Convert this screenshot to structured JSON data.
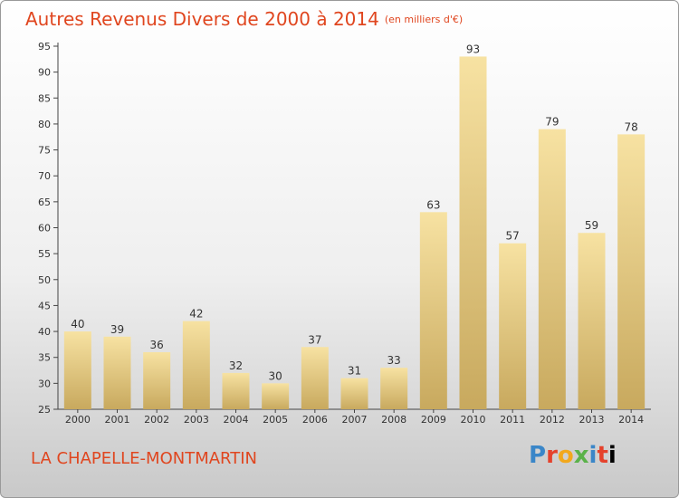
{
  "title": "Autres Revenus Divers de 2000 à 2014",
  "unit": "(en milliers d'€)",
  "place": "LA CHAPELLE-MONTMARTIN",
  "logo": {
    "letters": [
      "P",
      "r",
      "o",
      "x",
      "i",
      "t",
      "i"
    ]
  },
  "colors": {
    "title": "#e0461f",
    "bar_top": "#f7e2a2",
    "bar_bottom": "#c8a95e"
  },
  "chart_data": {
    "type": "bar",
    "title": "Autres Revenus Divers de 2000 à 2014",
    "unit": "(en milliers d'€)",
    "categories": [
      "2000",
      "2001",
      "2002",
      "2003",
      "2004",
      "2005",
      "2006",
      "2007",
      "2008",
      "2009",
      "2010",
      "2011",
      "2012",
      "2013",
      "2014"
    ],
    "values": [
      40,
      39,
      36,
      42,
      32,
      30,
      37,
      31,
      33,
      63,
      93,
      57,
      79,
      59,
      78
    ],
    "ylim": [
      25,
      95
    ],
    "yticks": [
      25,
      30,
      35,
      40,
      45,
      50,
      55,
      60,
      65,
      70,
      75,
      80,
      85,
      90,
      95
    ],
    "grid": false,
    "legend": "none"
  }
}
